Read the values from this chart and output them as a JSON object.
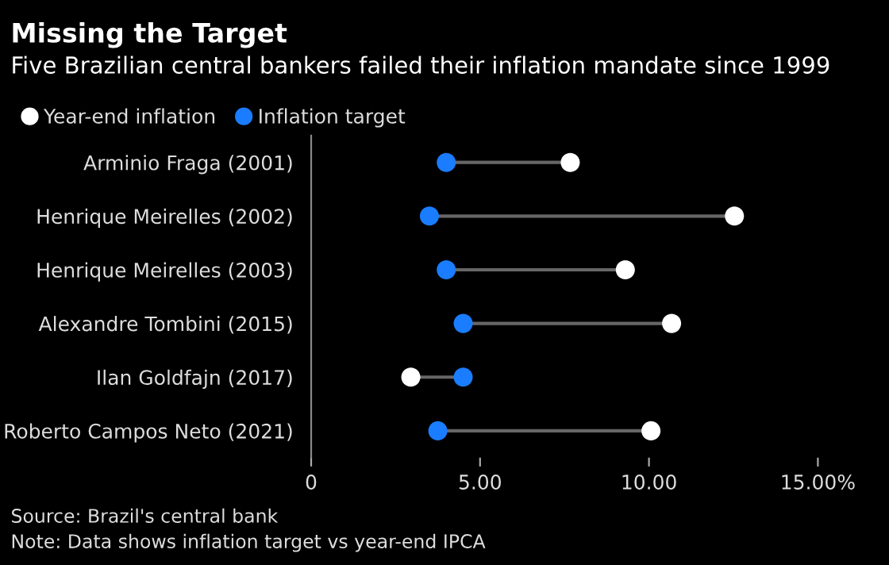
{
  "chart_data": {
    "type": "scatter",
    "orientation": "horizontal",
    "title": "Missing the Target",
    "subtitle": "Five Brazilian central bankers failed their inflation mandate since 1999",
    "categories": [
      "Arminio Fraga (2001)",
      "Henrique Meirelles (2002)",
      "Henrique Meirelles (2003)",
      "Alexandre Tombini (2015)",
      "Ilan Goldfajn (2017)",
      "Roberto Campos Neto (2021)"
    ],
    "series": [
      {
        "name": "Year-end inflation",
        "color": "#ffffff",
        "values": [
          7.67,
          12.53,
          9.3,
          10.67,
          2.95,
          10.06
        ]
      },
      {
        "name": "Inflation target",
        "color": "#1a7cff",
        "values": [
          4.0,
          3.5,
          4.0,
          4.5,
          4.5,
          3.75
        ]
      }
    ],
    "xlim": [
      0,
      15
    ],
    "xticks": [
      0,
      {
        "value": 5,
        "label": "5.00"
      },
      {
        "value": 10,
        "label": "10.00"
      },
      {
        "value": 15,
        "label": "15.00%"
      }
    ],
    "legend": "top left",
    "marker": "circle",
    "grid": false,
    "annotations": [
      "Source: Brazil's central bank",
      "Note: Data shows inflation target vs year-end IPCA"
    ]
  }
}
